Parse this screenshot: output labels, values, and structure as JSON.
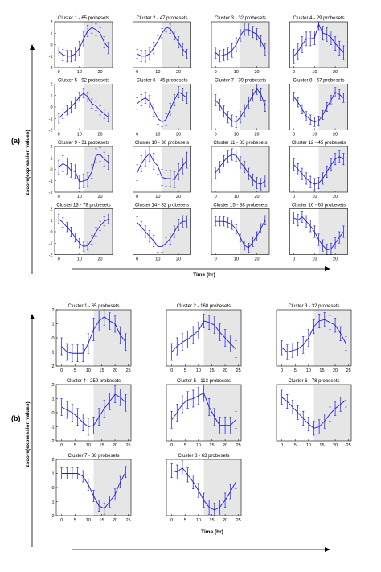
{
  "panel_a": {
    "label": "(a)",
    "ylabel": "zscore(expression values)",
    "xlabel": "Time (hr)",
    "xticks": [
      "0",
      "10",
      "20"
    ],
    "yticks": [
      "2",
      "1",
      "0",
      "-1",
      "-2"
    ]
  },
  "panel_b": {
    "label": "(b)",
    "ylabel": "zscore(expression values)",
    "xlabel": "Time (hr)",
    "xticks": [
      "0",
      "5",
      "10",
      "15",
      "20",
      "25"
    ],
    "yticks": [
      "2",
      "1",
      "0",
      "-1",
      "-2"
    ]
  },
  "colors": {
    "series": "#1a1adb",
    "shade": "#e6e6e6",
    "axis": "#000000"
  },
  "chart_data": [
    {
      "panel": "a",
      "type": "line",
      "x": [
        0,
        2,
        4,
        6,
        8,
        10,
        12,
        14,
        16,
        18,
        20,
        22,
        24
      ],
      "xlim": [
        -2,
        26
      ],
      "ylim": [
        -2,
        2
      ],
      "shade_from_x": 12,
      "xlabel": "Time (hr)",
      "ylabel": "zscore(expression values)",
      "series": [
        {
          "title": "Cluster 1 - 65 probesets",
          "values": [
            -0.6,
            -0.9,
            -1.0,
            -1.0,
            -0.8,
            -0.3,
            0.5,
            1.2,
            1.5,
            1.3,
            1.0,
            0.2,
            -0.3
          ],
          "err": [
            0.4,
            0.5,
            0.5,
            0.5,
            0.6,
            0.6,
            0.6,
            0.5,
            0.5,
            0.5,
            0.5,
            0.5,
            0.5
          ]
        },
        {
          "title": "Cluster 2 - 47 probesets",
          "values": [
            -0.8,
            -1.0,
            -1.0,
            -0.8,
            -0.3,
            0.3,
            1.0,
            1.5,
            1.4,
            0.8,
            0.2,
            -0.4,
            -0.8
          ],
          "err": [
            0.4,
            0.5,
            0.5,
            0.5,
            0.5,
            0.5,
            0.4,
            0.4,
            0.4,
            0.4,
            0.5,
            0.5,
            0.4
          ]
        },
        {
          "title": "Cluster 3 - 32 probesets",
          "values": [
            -0.7,
            -1.0,
            -0.9,
            -0.8,
            -0.5,
            0.0,
            0.8,
            1.3,
            1.3,
            1.1,
            0.9,
            0.3,
            -0.4
          ],
          "err": [
            0.5,
            0.5,
            0.5,
            0.5,
            0.6,
            0.6,
            0.5,
            0.5,
            0.5,
            0.5,
            0.5,
            0.5,
            0.5
          ]
        },
        {
          "title": "Cluster 4 - 29 probesets",
          "values": [
            -1.0,
            -0.6,
            0.0,
            0.5,
            0.5,
            0.6,
            1.8,
            1.0,
            0.9,
            0.6,
            0.1,
            -0.3,
            -0.7
          ],
          "err": [
            0.6,
            0.7,
            0.7,
            0.6,
            0.6,
            0.6,
            0.5,
            0.6,
            0.6,
            0.6,
            0.6,
            0.6,
            0.6
          ]
        },
        {
          "title": "Cluster 5 - 92 probesets",
          "values": [
            -1.0,
            -0.6,
            -0.3,
            0.0,
            0.4,
            0.9,
            1.2,
            0.9,
            0.3,
            0.1,
            -0.3,
            -0.6,
            -0.9
          ],
          "err": [
            0.4,
            0.4,
            0.4,
            0.5,
            0.5,
            0.4,
            0.4,
            0.4,
            0.4,
            0.4,
            0.4,
            0.4,
            0.4
          ]
        },
        {
          "title": "Cluster 6 - 45 probesets",
          "values": [
            0.3,
            0.6,
            0.8,
            0.5,
            -0.3,
            -1.0,
            -1.3,
            -1.1,
            -0.2,
            0.6,
            1.3,
            1.1,
            0.8
          ],
          "err": [
            0.5,
            0.5,
            0.5,
            0.5,
            0.5,
            0.5,
            0.4,
            0.5,
            0.5,
            0.5,
            0.5,
            0.5,
            0.5
          ]
        },
        {
          "title": "Cluster 7 - 39 probesets",
          "values": [
            0.6,
            0.2,
            -0.4,
            -0.9,
            -1.2,
            -1.3,
            -0.9,
            -0.3,
            0.4,
            1.0,
            1.6,
            1.1,
            0.1
          ],
          "err": [
            0.5,
            0.5,
            0.5,
            0.5,
            0.5,
            0.5,
            0.5,
            0.5,
            0.5,
            0.5,
            0.5,
            0.5,
            0.5
          ]
        },
        {
          "title": "Cluster 8 - 67 probesets",
          "values": [
            0.9,
            0.4,
            -0.2,
            -0.8,
            -1.1,
            -1.3,
            -1.2,
            -0.7,
            0.0,
            0.6,
            1.3,
            1.1,
            0.8
          ],
          "err": [
            0.4,
            0.4,
            0.4,
            0.4,
            0.4,
            0.4,
            0.4,
            0.4,
            0.4,
            0.4,
            0.4,
            0.4,
            0.4
          ]
        },
        {
          "title": "Cluster 9 - 31 probesets",
          "values": [
            0.2,
            0.5,
            0.3,
            -0.1,
            -0.2,
            -1.1,
            -1.0,
            -0.9,
            -0.2,
            1.2,
            1.3,
            0.9,
            0.6
          ],
          "err": [
            0.6,
            0.7,
            0.7,
            0.6,
            0.6,
            0.6,
            0.6,
            0.6,
            0.6,
            0.6,
            0.6,
            0.6,
            0.6
          ]
        },
        {
          "title": "Cluster 10 - 30 probesets",
          "values": [
            -0.3,
            0.5,
            1.0,
            1.4,
            0.7,
            0.3,
            -0.7,
            -0.8,
            -0.8,
            -0.9,
            -0.2,
            0.3,
            0.8
          ],
          "err": [
            0.7,
            0.7,
            0.7,
            0.7,
            0.7,
            0.7,
            0.7,
            0.7,
            0.7,
            0.7,
            0.7,
            0.7,
            0.7
          ]
        },
        {
          "title": "Cluster 11 - 83 probesets",
          "values": [
            -0.3,
            0.2,
            0.7,
            1.1,
            1.3,
            1.2,
            0.6,
            0.2,
            -0.4,
            -0.9,
            -1.2,
            -1.3,
            -1.0
          ],
          "err": [
            0.5,
            0.5,
            0.5,
            0.5,
            0.5,
            0.5,
            0.5,
            0.5,
            0.5,
            0.5,
            0.5,
            0.5,
            0.5
          ]
        },
        {
          "title": "Cluster 12 - 45 probesets",
          "values": [
            0.4,
            0.0,
            -0.4,
            -0.8,
            -1.1,
            -1.3,
            -1.2,
            -0.8,
            -0.2,
            0.4,
            0.9,
            1.1,
            0.9
          ],
          "err": [
            0.5,
            0.5,
            0.5,
            0.5,
            0.5,
            0.5,
            0.5,
            0.5,
            0.5,
            0.5,
            0.5,
            0.5,
            0.5
          ]
        },
        {
          "title": "Cluster 13 - 78 probesets",
          "values": [
            1.1,
            0.8,
            0.4,
            0.0,
            -0.5,
            -1.0,
            -1.3,
            -1.2,
            -0.7,
            0.0,
            0.5,
            0.9,
            1.1
          ],
          "err": [
            0.4,
            0.4,
            0.4,
            0.4,
            0.4,
            0.4,
            0.4,
            0.4,
            0.4,
            0.4,
            0.4,
            0.4,
            0.4
          ]
        },
        {
          "title": "Cluster 14 - 32 probesets",
          "values": [
            0.8,
            0.4,
            0.0,
            -0.4,
            -0.8,
            -1.3,
            -1.3,
            -1.0,
            -0.6,
            0.0,
            0.6,
            0.9,
            0.9
          ],
          "err": [
            0.5,
            0.5,
            0.5,
            0.5,
            0.5,
            0.5,
            0.5,
            0.5,
            0.5,
            0.5,
            0.5,
            0.5,
            0.5
          ]
        },
        {
          "title": "Cluster 15 - 38 probesets",
          "values": [
            0.9,
            0.9,
            0.9,
            0.8,
            0.6,
            0.2,
            -0.5,
            -1.2,
            -1.4,
            -0.9,
            -0.4,
            0.3,
            1.0
          ],
          "err": [
            0.4,
            0.4,
            0.4,
            0.4,
            0.4,
            0.4,
            0.4,
            0.4,
            0.4,
            0.4,
            0.4,
            0.4,
            0.4
          ]
        },
        {
          "title": "Cluster 16 - 63 probesets",
          "values": [
            1.2,
            1.0,
            1.3,
            0.9,
            0.5,
            0.0,
            -0.7,
            -1.2,
            -1.6,
            -1.5,
            -1.0,
            -0.5,
            0.0
          ],
          "err": [
            0.5,
            0.5,
            0.5,
            0.5,
            0.5,
            0.5,
            0.5,
            0.5,
            0.5,
            0.5,
            0.5,
            0.5,
            0.5
          ]
        }
      ]
    },
    {
      "panel": "b",
      "type": "line",
      "x": [
        0,
        2,
        4,
        6,
        8,
        10,
        12,
        14,
        16,
        18,
        20,
        22,
        24
      ],
      "xlim": [
        -2,
        26
      ],
      "ylim": [
        -2,
        2
      ],
      "shade_from_x": 12,
      "xlabel": "Time (hr)",
      "ylabel": "zscore(expression values)",
      "series": [
        {
          "title": "Cluster 1 - 65 probesets",
          "values": [
            -0.6,
            -1.0,
            -1.1,
            -1.1,
            -1.1,
            -0.4,
            0.6,
            1.2,
            1.5,
            1.2,
            1.0,
            0.2,
            -0.3
          ],
          "err": [
            0.6,
            0.6,
            0.6,
            0.6,
            0.6,
            0.7,
            0.8,
            0.7,
            0.6,
            0.6,
            0.6,
            0.6,
            0.6
          ]
        },
        {
          "title": "Cluster 2 - 168 probesets",
          "values": [
            -1.0,
            -0.6,
            -0.3,
            -0.1,
            0.2,
            0.5,
            1.2,
            1.1,
            0.9,
            0.4,
            0.0,
            -0.4,
            -0.8
          ],
          "err": [
            0.6,
            0.6,
            0.6,
            0.6,
            0.6,
            0.6,
            0.5,
            0.5,
            0.6,
            0.6,
            0.6,
            0.6,
            0.6
          ]
        },
        {
          "title": "Cluster 3 - 32 probesets",
          "values": [
            -0.7,
            -1.0,
            -0.9,
            -0.8,
            -0.5,
            0.0,
            0.8,
            1.2,
            1.3,
            1.1,
            0.9,
            0.3,
            -0.4
          ],
          "err": [
            0.5,
            0.5,
            0.5,
            0.5,
            0.6,
            0.6,
            0.5,
            0.5,
            0.5,
            0.5,
            0.5,
            0.5,
            0.5
          ]
        },
        {
          "title": "Cluster 4 - 259 probesets",
          "values": [
            0.4,
            0.2,
            0.0,
            -0.3,
            -0.7,
            -1.0,
            -0.9,
            -0.3,
            0.3,
            0.8,
            1.3,
            1.1,
            0.7
          ],
          "err": [
            0.6,
            0.6,
            0.6,
            0.6,
            0.6,
            0.6,
            0.6,
            0.6,
            0.6,
            0.6,
            0.6,
            0.6,
            0.6
          ]
        },
        {
          "title": "Cluster 5 - 113 probesets",
          "values": [
            -0.5,
            0.0,
            0.6,
            0.9,
            1.0,
            1.2,
            1.4,
            0.4,
            -0.3,
            -0.9,
            -0.9,
            -0.9,
            -0.5
          ],
          "err": [
            0.6,
            0.6,
            0.6,
            0.6,
            0.6,
            0.6,
            0.6,
            0.6,
            0.6,
            0.6,
            0.6,
            0.6,
            0.6
          ]
        },
        {
          "title": "Cluster 6 - 78 probesets",
          "values": [
            1.1,
            0.8,
            0.4,
            0.0,
            -0.4,
            -0.8,
            -1.1,
            -1.0,
            -0.6,
            -0.1,
            0.3,
            0.6,
            0.9
          ],
          "err": [
            0.5,
            0.5,
            0.5,
            0.5,
            0.5,
            0.5,
            0.5,
            0.5,
            0.5,
            0.5,
            0.5,
            0.5,
            0.5
          ]
        },
        {
          "title": "Cluster 7 - 38 probesets",
          "values": [
            1.0,
            1.0,
            1.0,
            1.0,
            0.8,
            0.2,
            -0.6,
            -1.3,
            -1.5,
            -1.0,
            -0.5,
            0.4,
            1.1
          ],
          "err": [
            0.4,
            0.4,
            0.4,
            0.4,
            0.4,
            0.4,
            0.4,
            0.4,
            0.4,
            0.4,
            0.4,
            0.4,
            0.4
          ]
        },
        {
          "title": "Cluster 8 - 63 probesets",
          "values": [
            1.2,
            1.1,
            1.4,
            0.9,
            0.4,
            -0.2,
            -0.9,
            -1.4,
            -1.6,
            -1.4,
            -0.9,
            -0.3,
            0.4
          ],
          "err": [
            0.5,
            0.5,
            0.5,
            0.5,
            0.5,
            0.5,
            0.5,
            0.5,
            0.5,
            0.5,
            0.5,
            0.5,
            0.5
          ]
        }
      ]
    }
  ]
}
